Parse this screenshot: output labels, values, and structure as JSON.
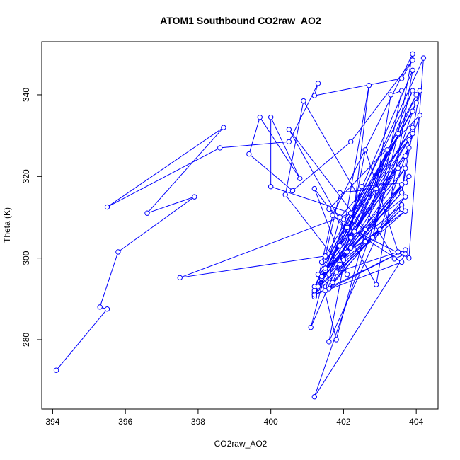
{
  "chart_data": {
    "type": "line",
    "title": "ATOM1 Southbound CO2raw_AO2",
    "xlabel": "CO2raw_AO2",
    "ylabel": "Theta (K)",
    "xlim": [
      393.7,
      404.6
    ],
    "ylim": [
      263,
      353
    ],
    "xticks": [
      "394",
      "396",
      "398",
      "400",
      "402",
      "404"
    ],
    "yticks": [
      "280",
      "300",
      "320",
      "340"
    ],
    "grid": false,
    "legend": "none",
    "colors": {
      "series": "#0000ff",
      "axis": "#000000"
    },
    "series": [
      {
        "x": [
          394.1,
          395.5,
          395.3,
          395.8,
          397.9,
          396.6,
          398.7,
          395.5,
          398.6,
          400.5,
          401.3,
          401.2,
          403.6,
          403.9,
          402.2,
          400.6,
          399.4,
          399.7,
          400.8,
          400.0,
          400.0,
          402.2,
          397.5,
          401.5,
          401.9,
          402.9,
          403.3,
          403.6,
          402.8,
          403.5,
          403.9,
          401.7,
          401.2,
          403.7,
          401.5,
          402.0,
          403.5,
          401.9,
          402.5,
          403.7,
          401.4,
          401.8,
          403.2,
          401.1,
          401.9,
          403.8,
          403.6,
          404.1,
          401.2,
          403.7,
          403.4,
          400.9,
          400.4,
          402.1,
          401.2,
          402.2,
          402.7,
          401.8,
          403.5,
          402.6,
          401.6,
          403.0,
          404.1,
          401.6,
          402.6,
          400.5,
          402.9,
          403.9,
          401.2,
          404.2,
          403.8,
          402.1,
          403.9,
          401.2,
          403.9,
          402.0,
          402.6,
          402.2,
          401.5,
          403.6,
          401.9,
          403.8,
          401.6,
          403.7,
          401.4,
          403.9,
          401.3,
          403.6,
          401.7,
          404.0,
          401.2,
          403.7,
          401.3,
          403.6,
          401.2,
          403.6,
          402.3,
          403.8,
          401.4,
          404.0,
          401.2,
          403.7,
          401.5,
          403.9,
          401.6,
          403.6,
          402.1,
          403.7,
          401.9
        ],
        "y": [
          272.5,
          287.5,
          288.0,
          301.5,
          315.0,
          311.0,
          332.0,
          312.5,
          327.0,
          328.5,
          342.8,
          339.8,
          344.0,
          348.5,
          328.5,
          316.5,
          325.5,
          334.5,
          319.5,
          334.5,
          317.5,
          311.0,
          295.2,
          300.5,
          316.0,
          317.0,
          340.0,
          341.0,
          305.0,
          330.5,
          350.0,
          310.5,
          291.0,
          302.0,
          292.0,
          309.5,
          322.0,
          299.0,
          317.5,
          318.5,
          295.0,
          280.0,
          326.5,
          283.0,
          310.0,
          329.0,
          316.0,
          341.0,
          266.0,
          301.0,
          299.8,
          338.5,
          315.5,
          296.0,
          317.0,
          305.0,
          342.3,
          296.5,
          301.5,
          326.5,
          279.5,
          307.0,
          335.0,
          312.0,
          307.0,
          331.5,
          293.5,
          346.0,
          290.5,
          349.0,
          300.0,
          307.5,
          332.0,
          293.0,
          341.0,
          299.5,
          304.0,
          302.5,
          297.0,
          318.0,
          298.5,
          320.0,
          292.5,
          315.0,
          299.0,
          336.0,
          296.0,
          313.0,
          294.0,
          340.0,
          291.5,
          325.0,
          293.0,
          312.0,
          291.0,
          299.0,
          306.5,
          327.0,
          295.5,
          338.0,
          292.0,
          311.5,
          297.5,
          330.5,
          296.0,
          316.0,
          301.5,
          322.0,
          303.0
        ]
      }
    ]
  }
}
